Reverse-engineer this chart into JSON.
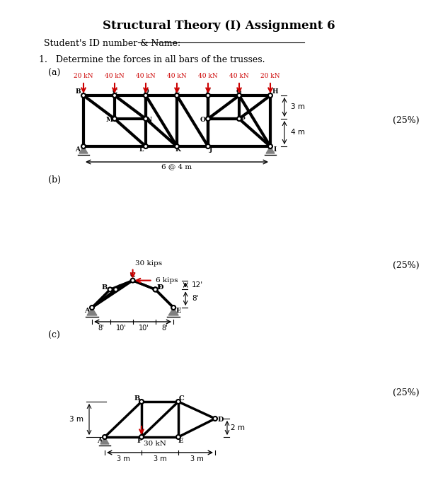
{
  "title": "Structural Theory (I) Assignment 6",
  "student_line": "Student's ID number & Name:",
  "problem_text": "1.   Determine the forces in all bars of the trusses.",
  "bg_color": "#ffffff",
  "text_color": "#000000",
  "red_color": "#cc0000",
  "truss_a_label": "(a)",
  "truss_a_loads": [
    "20 kN",
    "40 kN",
    "40 kN",
    "40 kN",
    "40 kN",
    "40 kN",
    "20 kN"
  ],
  "truss_a_dim": "6 @ 4 m",
  "truss_a_h1": "3 m",
  "truss_a_h2": "4 m",
  "truss_a_pct": "(25%)",
  "truss_b_label": "(b)",
  "truss_b_load1": "30 kips",
  "truss_b_load2": "6 kips",
  "truss_b_h1": "12'",
  "truss_b_h2": "8'",
  "truss_b_pct": "(25%)",
  "truss_c_label": "(c)",
  "truss_c_load": "30 kN",
  "truss_c_h1": "3 m",
  "truss_c_h2": "2 m",
  "truss_c_pct": "(25%)"
}
